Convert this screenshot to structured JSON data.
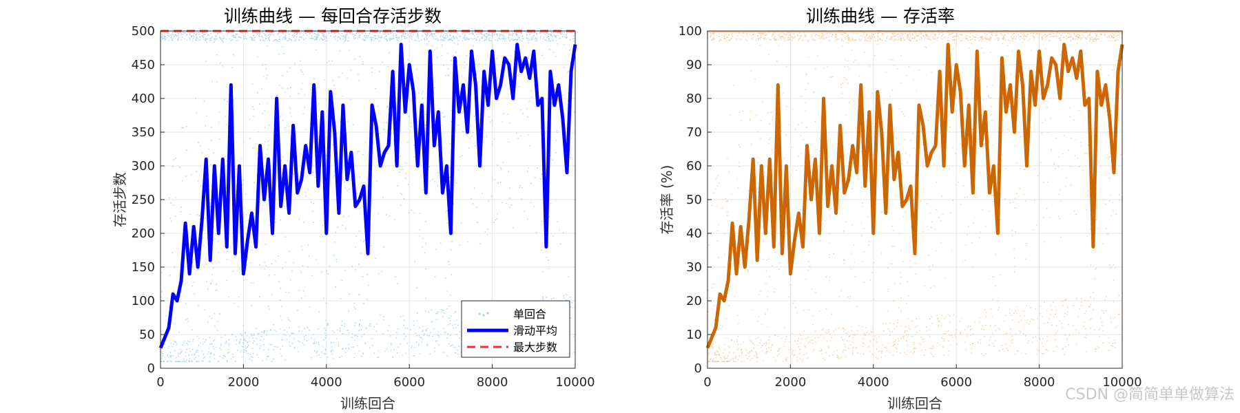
{
  "watermark": "CSDN @简简单单做算法",
  "chart_data": [
    {
      "type": "line",
      "title": "训练曲线 — 每回合存活步数",
      "xlabel": "训练回合",
      "ylabel": "存活步数",
      "xlim": [
        0,
        10000
      ],
      "ylim": [
        0,
        500
      ],
      "xticks": [
        "0",
        "2000",
        "4000",
        "6000",
        "8000",
        "10000"
      ],
      "yticks": [
        "0",
        "50",
        "100",
        "150",
        "200",
        "250",
        "300",
        "350",
        "400",
        "450",
        "500"
      ],
      "grid": true,
      "legend_position": "bottom-right",
      "legend": [
        "单回合",
        "滑动平均",
        "最大步数"
      ],
      "series": [
        {
          "name": "单回合",
          "kind": "scatter",
          "color": "#9fd0f5",
          "note": "individual episodes, spread between ~10 and 500"
        },
        {
          "name": "滑动平均",
          "kind": "line",
          "color": "#0000ff",
          "x": [
            0,
            100,
            200,
            300,
            400,
            500,
            600,
            700,
            800,
            900,
            1000,
            1100,
            1200,
            1300,
            1400,
            1500,
            1600,
            1700,
            1800,
            1900,
            2000,
            2100,
            2200,
            2300,
            2400,
            2500,
            2600,
            2700,
            2800,
            2900,
            3000,
            3100,
            3200,
            3300,
            3400,
            3500,
            3600,
            3700,
            3800,
            3900,
            4000,
            4100,
            4200,
            4300,
            4400,
            4500,
            4600,
            4700,
            4800,
            4900,
            5000,
            5100,
            5200,
            5300,
            5400,
            5500,
            5600,
            5700,
            5800,
            5900,
            6000,
            6100,
            6200,
            6300,
            6400,
            6500,
            6600,
            6700,
            6800,
            6900,
            7000,
            7100,
            7200,
            7300,
            7400,
            7500,
            7600,
            7700,
            7800,
            7900,
            8000,
            8100,
            8200,
            8300,
            8400,
            8500,
            8600,
            8700,
            8800,
            8900,
            9000,
            9100,
            9200,
            9300,
            9400,
            9500,
            9600,
            9700,
            9800,
            9900,
            10000
          ],
          "y": [
            30,
            45,
            60,
            110,
            100,
            130,
            215,
            140,
            210,
            150,
            220,
            310,
            160,
            300,
            200,
            310,
            180,
            420,
            170,
            300,
            140,
            190,
            230,
            180,
            330,
            250,
            310,
            200,
            400,
            240,
            300,
            230,
            360,
            260,
            280,
            330,
            290,
            420,
            270,
            380,
            200,
            410,
            350,
            230,
            390,
            280,
            320,
            240,
            250,
            270,
            170,
            390,
            360,
            300,
            320,
            330,
            440,
            300,
            480,
            380,
            450,
            410,
            300,
            390,
            260,
            470,
            330,
            380,
            260,
            300,
            200,
            460,
            380,
            420,
            350,
            470,
            420,
            300,
            440,
            390,
            470,
            400,
            420,
            460,
            450,
            400,
            480,
            440,
            460,
            430,
            470,
            390,
            400,
            180,
            440,
            390,
            420,
            370,
            290,
            440,
            480
          ]
        },
        {
          "name": "最大步数",
          "kind": "dashed-line",
          "color": "#ff2a2a",
          "y": 500
        }
      ]
    },
    {
      "type": "line",
      "title": "训练曲线 — 存活率",
      "xlabel": "训练回合",
      "ylabel": "存活率 (%)",
      "xlim": [
        0,
        10000
      ],
      "ylim": [
        0,
        100
      ],
      "xticks": [
        "0",
        "2000",
        "4000",
        "6000",
        "8000",
        "10000"
      ],
      "yticks": [
        "0",
        "10",
        "20",
        "30",
        "40",
        "50",
        "60",
        "70",
        "80",
        "90",
        "100"
      ],
      "grid": true,
      "series": [
        {
          "kind": "scatter",
          "color": "#f8c9a0"
        },
        {
          "kind": "line",
          "color": "#cc6600",
          "x": [
            0,
            100,
            200,
            300,
            400,
            500,
            600,
            700,
            800,
            900,
            1000,
            1100,
            1200,
            1300,
            1400,
            1500,
            1600,
            1700,
            1800,
            1900,
            2000,
            2100,
            2200,
            2300,
            2400,
            2500,
            2600,
            2700,
            2800,
            2900,
            3000,
            3100,
            3200,
            3300,
            3400,
            3500,
            3600,
            3700,
            3800,
            3900,
            4000,
            4100,
            4200,
            4300,
            4400,
            4500,
            4600,
            4700,
            4800,
            4900,
            5000,
            5100,
            5200,
            5300,
            5400,
            5500,
            5600,
            5700,
            5800,
            5900,
            6000,
            6100,
            6200,
            6300,
            6400,
            6500,
            6600,
            6700,
            6800,
            6900,
            7000,
            7100,
            7200,
            7300,
            7400,
            7500,
            7600,
            7700,
            7800,
            7900,
            8000,
            8100,
            8200,
            8300,
            8400,
            8500,
            8600,
            8700,
            8800,
            8900,
            9000,
            9100,
            9200,
            9300,
            9400,
            9500,
            9600,
            9700,
            9800,
            9900,
            10000
          ],
          "y": [
            6,
            9,
            12,
            22,
            20,
            26,
            43,
            28,
            42,
            30,
            44,
            62,
            32,
            60,
            40,
            62,
            36,
            84,
            34,
            60,
            28,
            38,
            46,
            36,
            66,
            50,
            62,
            40,
            80,
            48,
            60,
            46,
            72,
            52,
            56,
            66,
            58,
            84,
            54,
            76,
            40,
            82,
            70,
            46,
            78,
            56,
            64,
            48,
            50,
            54,
            34,
            78,
            72,
            60,
            64,
            66,
            88,
            60,
            96,
            76,
            90,
            82,
            60,
            78,
            52,
            94,
            66,
            76,
            52,
            60,
            40,
            92,
            76,
            84,
            70,
            94,
            84,
            60,
            88,
            78,
            94,
            80,
            84,
            92,
            90,
            80,
            96,
            88,
            92,
            86,
            94,
            78,
            80,
            36,
            88,
            78,
            84,
            74,
            58,
            88,
            96
          ]
        }
      ]
    }
  ]
}
